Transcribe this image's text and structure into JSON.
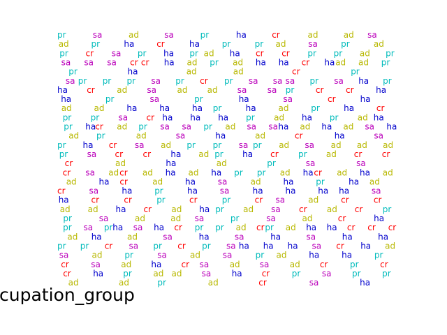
{
  "chart_data": {
    "type": "scatter",
    "title": "",
    "xlabel": "occupation_group",
    "ylabel": "",
    "legend": "none",
    "grid": false,
    "axes_visible": false,
    "categories": [
      "ad",
      "cr",
      "ha",
      "pr",
      "sa"
    ],
    "colors": {
      "ad": "#b8b800",
      "cr": "#ff0000",
      "ha": "#0000cc",
      "pr": "#00bbbb",
      "sa": "#bb00bb"
    },
    "rows": [
      "pr sa ad sa pr ha cr ad ad sa",
      "ad pr ha cr ha pr pr ad sa pr ad",
      "pr cr sa pr ha pr ad ha cr cr pr pr ad pr",
      "sa sa sa cr cr ha ad pr ad ha ha cr ha ad ad pr",
      "pr ha ad ad cr pr",
      "sa pr pr pr sa pr cr pr sa sa sa pr sa ha pr",
      "ha cr ad sa ad ad sa sa pr cr cr ha",
      "ha pr sa pr ha sa cr ha",
      "ad ad ha ha ha pr ha ad pr ha cr",
      "pr pr sa cr ha ha ha pr ad ha pr ad ha",
      "pr ha cr ad pr sa sa pr ad sa sa ha ad ha ad sa ha",
      "ad pr ad sa ha ad cr ha sa",
      "pr ha cr sa ad pr pr sa pr ad sa ad ad ad",
      "pr sa cr cr ha ad pr ha cr pr ad cr cr",
      "cr ad ha ad pr sa sa",
      "cr sa ad cr ad ha ad ha pr pr ad ha cr ad ha ad",
      "ad ha cr ad ha sa ad ha pr ha ad",
      "cr sa ha pr ha sa ha ha ha ha sa",
      "ha cr cr pr cr pr cr sa ad cr cr",
      "ad ad ha cr ad ha pr ad sa cr ad cr pr",
      "pr sa ad ad sa pr sa ad cr ha",
      "pr sa pr ha sa ha cr pr pr ad cr pr ad ha ha cr cr cr",
      "ad ha ad sa ha sa ha sa ha ha",
      "pr pr cr sa pr cr pr sa ha ha ha sa cr ha ad",
      "sa ad pr sa ad sa pr ad ha ha pr",
      "cr sa ad ha cr sa ad sa ad cr pr cr",
      "cr ha pr ad ad sa ha cr pr sa pr pr",
      "ad ad pr ad cr sa ha"
    ]
  }
}
